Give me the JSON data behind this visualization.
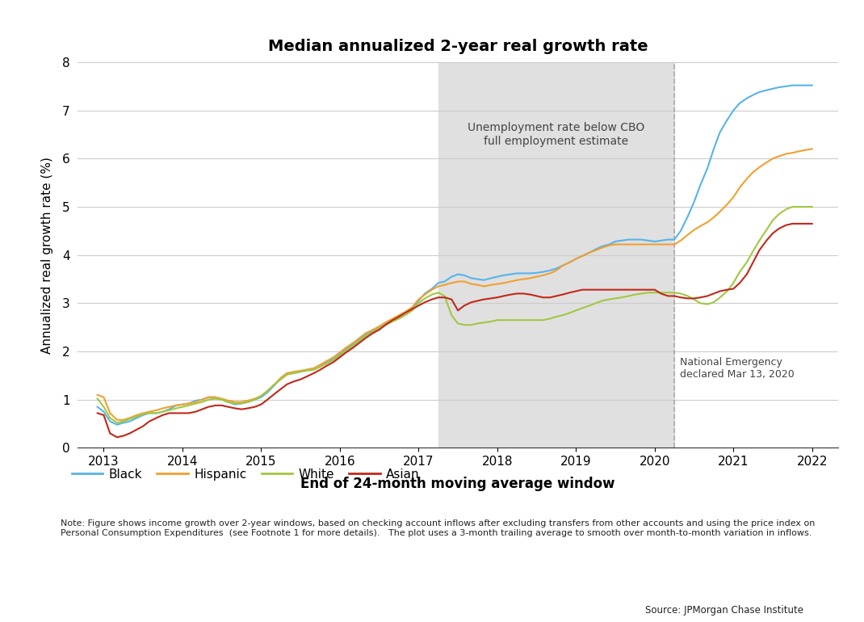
{
  "title": "Median annualized 2-year real growth rate",
  "xlabel": "End of 24-month moving average window",
  "ylabel": "Annualized real growth rate (%)",
  "ylim": [
    0,
    8
  ],
  "yticks": [
    0,
    1,
    2,
    3,
    4,
    5,
    6,
    7,
    8
  ],
  "xlim_start": 2012.67,
  "xlim_end": 2022.33,
  "xticks": [
    2013,
    2014,
    2015,
    2016,
    2017,
    2018,
    2019,
    2020,
    2021,
    2022
  ],
  "shade_start": 2017.25,
  "shade_end": 2020.25,
  "vline_x": 2020.25,
  "shade_color": "#e0e0e0",
  "shade_label": "Unemployment rate below CBO\nfull employment estimate",
  "vline_label": "National Emergency\ndeclared Mar 13, 2020",
  "colors": {
    "Black": "#56b4e9",
    "Hispanic": "#f0a030",
    "White": "#a0c840",
    "Asian": "#c0281a"
  },
  "note_text": "Note: Figure shows income growth over 2-year windows, based on checking account inflows after excluding transfers from other accounts and using the price index on\nPersonal Consumption Expenditures  (see Footnote 1 for more details).   The plot uses a 3-month trailing average to smooth over month-to-month variation in inflows.",
  "source_text": "Source: JPMorgan Chase Institute",
  "black_x": [
    2012.92,
    2013.0,
    2013.08,
    2013.17,
    2013.25,
    2013.33,
    2013.42,
    2013.5,
    2013.58,
    2013.67,
    2013.75,
    2013.83,
    2013.92,
    2014.0,
    2014.08,
    2014.17,
    2014.25,
    2014.33,
    2014.42,
    2014.5,
    2014.58,
    2014.67,
    2014.75,
    2014.83,
    2014.92,
    2015.0,
    2015.08,
    2015.17,
    2015.25,
    2015.33,
    2015.42,
    2015.5,
    2015.58,
    2015.67,
    2015.75,
    2015.83,
    2015.92,
    2016.0,
    2016.08,
    2016.17,
    2016.25,
    2016.33,
    2016.42,
    2016.5,
    2016.58,
    2016.67,
    2016.75,
    2016.83,
    2016.92,
    2017.0,
    2017.08,
    2017.17,
    2017.25,
    2017.33,
    2017.42,
    2017.5,
    2017.58,
    2017.67,
    2017.75,
    2017.83,
    2017.92,
    2018.0,
    2018.08,
    2018.17,
    2018.25,
    2018.33,
    2018.42,
    2018.5,
    2018.58,
    2018.67,
    2018.75,
    2018.83,
    2018.92,
    2019.0,
    2019.08,
    2019.17,
    2019.25,
    2019.33,
    2019.42,
    2019.5,
    2019.58,
    2019.67,
    2019.75,
    2019.83,
    2019.92,
    2020.0,
    2020.08,
    2020.17,
    2020.25,
    2020.33,
    2020.42,
    2020.5,
    2020.58,
    2020.67,
    2020.75,
    2020.83,
    2020.92,
    2021.0,
    2021.08,
    2021.17,
    2021.25,
    2021.33,
    2021.42,
    2021.5,
    2021.58,
    2021.67,
    2021.75,
    2021.83,
    2021.92,
    2022.0
  ],
  "black_y": [
    0.85,
    0.75,
    0.55,
    0.48,
    0.52,
    0.55,
    0.62,
    0.68,
    0.72,
    0.72,
    0.75,
    0.8,
    0.88,
    0.9,
    0.92,
    0.98,
    1.0,
    1.05,
    1.05,
    1.0,
    0.95,
    0.9,
    0.92,
    0.95,
    1.0,
    1.05,
    1.15,
    1.3,
    1.45,
    1.55,
    1.55,
    1.58,
    1.62,
    1.65,
    1.72,
    1.78,
    1.85,
    1.95,
    2.05,
    2.15,
    2.25,
    2.35,
    2.42,
    2.5,
    2.58,
    2.65,
    2.72,
    2.8,
    2.9,
    3.05,
    3.2,
    3.3,
    3.42,
    3.45,
    3.55,
    3.6,
    3.58,
    3.52,
    3.5,
    3.48,
    3.52,
    3.55,
    3.58,
    3.6,
    3.62,
    3.62,
    3.62,
    3.63,
    3.65,
    3.68,
    3.72,
    3.78,
    3.85,
    3.92,
    3.98,
    4.05,
    4.12,
    4.18,
    4.22,
    4.28,
    4.3,
    4.32,
    4.32,
    4.32,
    4.3,
    4.28,
    4.3,
    4.32,
    4.32,
    4.5,
    4.8,
    5.1,
    5.45,
    5.8,
    6.2,
    6.55,
    6.8,
    7.0,
    7.15,
    7.25,
    7.32,
    7.38,
    7.42,
    7.45,
    7.48,
    7.5,
    7.52,
    7.52,
    7.52,
    7.52
  ],
  "hispanic_x": [
    2012.92,
    2013.0,
    2013.08,
    2013.17,
    2013.25,
    2013.33,
    2013.42,
    2013.5,
    2013.58,
    2013.67,
    2013.75,
    2013.83,
    2013.92,
    2014.0,
    2014.08,
    2014.17,
    2014.25,
    2014.33,
    2014.42,
    2014.5,
    2014.58,
    2014.67,
    2014.75,
    2014.83,
    2014.92,
    2015.0,
    2015.08,
    2015.17,
    2015.25,
    2015.33,
    2015.42,
    2015.5,
    2015.58,
    2015.67,
    2015.75,
    2015.83,
    2015.92,
    2016.0,
    2016.08,
    2016.17,
    2016.25,
    2016.33,
    2016.42,
    2016.5,
    2016.58,
    2016.67,
    2016.75,
    2016.83,
    2016.92,
    2017.0,
    2017.08,
    2017.17,
    2017.25,
    2017.33,
    2017.42,
    2017.5,
    2017.58,
    2017.67,
    2017.75,
    2017.83,
    2017.92,
    2018.0,
    2018.08,
    2018.17,
    2018.25,
    2018.33,
    2018.42,
    2018.5,
    2018.58,
    2018.67,
    2018.75,
    2018.83,
    2018.92,
    2019.0,
    2019.08,
    2019.17,
    2019.25,
    2019.33,
    2019.42,
    2019.5,
    2019.58,
    2019.67,
    2019.75,
    2019.83,
    2019.92,
    2020.0,
    2020.08,
    2020.17,
    2020.25,
    2020.33,
    2020.42,
    2020.5,
    2020.58,
    2020.67,
    2020.75,
    2020.83,
    2020.92,
    2021.0,
    2021.08,
    2021.17,
    2021.25,
    2021.33,
    2021.42,
    2021.5,
    2021.58,
    2021.67,
    2021.75,
    2021.83,
    2021.92,
    2022.0
  ],
  "hispanic_y": [
    1.1,
    1.05,
    0.72,
    0.58,
    0.58,
    0.62,
    0.68,
    0.72,
    0.75,
    0.78,
    0.82,
    0.85,
    0.88,
    0.9,
    0.92,
    0.95,
    1.0,
    1.05,
    1.05,
    1.02,
    0.98,
    0.95,
    0.95,
    0.98,
    1.02,
    1.08,
    1.18,
    1.32,
    1.45,
    1.55,
    1.58,
    1.6,
    1.62,
    1.65,
    1.72,
    1.8,
    1.88,
    1.98,
    2.08,
    2.18,
    2.28,
    2.38,
    2.45,
    2.52,
    2.6,
    2.68,
    2.75,
    2.82,
    2.92,
    3.08,
    3.18,
    3.28,
    3.35,
    3.38,
    3.42,
    3.45,
    3.45,
    3.4,
    3.38,
    3.35,
    3.38,
    3.4,
    3.42,
    3.45,
    3.48,
    3.5,
    3.52,
    3.55,
    3.58,
    3.62,
    3.68,
    3.78,
    3.85,
    3.92,
    3.98,
    4.05,
    4.1,
    4.15,
    4.2,
    4.22,
    4.22,
    4.22,
    4.22,
    4.22,
    4.22,
    4.22,
    4.22,
    4.22,
    4.22,
    4.3,
    4.42,
    4.52,
    4.6,
    4.68,
    4.78,
    4.9,
    5.05,
    5.2,
    5.4,
    5.58,
    5.72,
    5.82,
    5.92,
    6.0,
    6.05,
    6.1,
    6.12,
    6.15,
    6.18,
    6.2
  ],
  "white_x": [
    2012.92,
    2013.0,
    2013.08,
    2013.17,
    2013.25,
    2013.33,
    2013.42,
    2013.5,
    2013.58,
    2013.67,
    2013.75,
    2013.83,
    2013.92,
    2014.0,
    2014.08,
    2014.17,
    2014.25,
    2014.33,
    2014.42,
    2014.5,
    2014.58,
    2014.67,
    2014.75,
    2014.83,
    2014.92,
    2015.0,
    2015.08,
    2015.17,
    2015.25,
    2015.33,
    2015.42,
    2015.5,
    2015.58,
    2015.67,
    2015.75,
    2015.83,
    2015.92,
    2016.0,
    2016.08,
    2016.17,
    2016.25,
    2016.33,
    2016.42,
    2016.5,
    2016.58,
    2016.67,
    2016.75,
    2016.83,
    2016.92,
    2017.0,
    2017.08,
    2017.17,
    2017.25,
    2017.33,
    2017.42,
    2017.5,
    2017.58,
    2017.67,
    2017.75,
    2017.83,
    2017.92,
    2018.0,
    2018.08,
    2018.17,
    2018.25,
    2018.33,
    2018.42,
    2018.5,
    2018.58,
    2018.67,
    2018.75,
    2018.83,
    2018.92,
    2019.0,
    2019.08,
    2019.17,
    2019.25,
    2019.33,
    2019.42,
    2019.5,
    2019.58,
    2019.67,
    2019.75,
    2019.83,
    2019.92,
    2020.0,
    2020.08,
    2020.17,
    2020.25,
    2020.33,
    2020.42,
    2020.5,
    2020.58,
    2020.67,
    2020.75,
    2020.83,
    2020.92,
    2021.0,
    2021.08,
    2021.17,
    2021.25,
    2021.33,
    2021.42,
    2021.5,
    2021.58,
    2021.67,
    2021.75,
    2021.83,
    2021.92,
    2022.0
  ],
  "white_y": [
    1.02,
    0.85,
    0.62,
    0.52,
    0.55,
    0.6,
    0.65,
    0.7,
    0.72,
    0.72,
    0.75,
    0.78,
    0.82,
    0.85,
    0.88,
    0.92,
    0.95,
    1.0,
    1.02,
    1.0,
    0.95,
    0.92,
    0.92,
    0.95,
    1.0,
    1.08,
    1.18,
    1.32,
    1.42,
    1.52,
    1.55,
    1.58,
    1.6,
    1.62,
    1.68,
    1.75,
    1.82,
    1.92,
    2.02,
    2.12,
    2.22,
    2.32,
    2.4,
    2.48,
    2.55,
    2.62,
    2.68,
    2.75,
    2.85,
    3.0,
    3.1,
    3.18,
    3.22,
    3.15,
    2.75,
    2.58,
    2.55,
    2.55,
    2.58,
    2.6,
    2.62,
    2.65,
    2.65,
    2.65,
    2.65,
    2.65,
    2.65,
    2.65,
    2.65,
    2.68,
    2.72,
    2.75,
    2.8,
    2.85,
    2.9,
    2.95,
    3.0,
    3.05,
    3.08,
    3.1,
    3.12,
    3.15,
    3.18,
    3.2,
    3.22,
    3.22,
    3.22,
    3.22,
    3.22,
    3.2,
    3.15,
    3.08,
    3.0,
    2.98,
    3.02,
    3.12,
    3.25,
    3.42,
    3.65,
    3.85,
    4.08,
    4.3,
    4.52,
    4.72,
    4.85,
    4.95,
    5.0,
    5.0,
    5.0,
    5.0
  ],
  "asian_x": [
    2012.92,
    2013.0,
    2013.08,
    2013.17,
    2013.25,
    2013.33,
    2013.42,
    2013.5,
    2013.58,
    2013.67,
    2013.75,
    2013.83,
    2013.92,
    2014.0,
    2014.08,
    2014.17,
    2014.25,
    2014.33,
    2014.42,
    2014.5,
    2014.58,
    2014.67,
    2014.75,
    2014.83,
    2014.92,
    2015.0,
    2015.08,
    2015.17,
    2015.25,
    2015.33,
    2015.42,
    2015.5,
    2015.58,
    2015.67,
    2015.75,
    2015.83,
    2015.92,
    2016.0,
    2016.08,
    2016.17,
    2016.25,
    2016.33,
    2016.42,
    2016.5,
    2016.58,
    2016.67,
    2016.75,
    2016.83,
    2016.92,
    2017.0,
    2017.08,
    2017.17,
    2017.25,
    2017.33,
    2017.42,
    2017.5,
    2017.58,
    2017.67,
    2017.75,
    2017.83,
    2017.92,
    2018.0,
    2018.08,
    2018.17,
    2018.25,
    2018.33,
    2018.42,
    2018.5,
    2018.58,
    2018.67,
    2018.75,
    2018.83,
    2018.92,
    2019.0,
    2019.08,
    2019.17,
    2019.25,
    2019.33,
    2019.42,
    2019.5,
    2019.58,
    2019.67,
    2019.75,
    2019.83,
    2019.92,
    2020.0,
    2020.08,
    2020.17,
    2020.25,
    2020.33,
    2020.42,
    2020.5,
    2020.58,
    2020.67,
    2020.75,
    2020.83,
    2020.92,
    2021.0,
    2021.08,
    2021.17,
    2021.25,
    2021.33,
    2021.42,
    2021.5,
    2021.58,
    2021.67,
    2021.75,
    2021.83,
    2021.92,
    2022.0
  ],
  "asian_y": [
    0.72,
    0.68,
    0.3,
    0.22,
    0.25,
    0.3,
    0.38,
    0.45,
    0.55,
    0.62,
    0.68,
    0.72,
    0.72,
    0.72,
    0.72,
    0.75,
    0.8,
    0.85,
    0.88,
    0.88,
    0.85,
    0.82,
    0.8,
    0.82,
    0.85,
    0.9,
    1.0,
    1.12,
    1.22,
    1.32,
    1.38,
    1.42,
    1.48,
    1.55,
    1.62,
    1.7,
    1.78,
    1.88,
    1.98,
    2.08,
    2.18,
    2.28,
    2.38,
    2.45,
    2.55,
    2.65,
    2.72,
    2.8,
    2.88,
    2.95,
    3.02,
    3.08,
    3.12,
    3.12,
    3.08,
    2.85,
    2.95,
    3.02,
    3.05,
    3.08,
    3.1,
    3.12,
    3.15,
    3.18,
    3.2,
    3.2,
    3.18,
    3.15,
    3.12,
    3.12,
    3.15,
    3.18,
    3.22,
    3.25,
    3.28,
    3.28,
    3.28,
    3.28,
    3.28,
    3.28,
    3.28,
    3.28,
    3.28,
    3.28,
    3.28,
    3.28,
    3.2,
    3.15,
    3.15,
    3.12,
    3.1,
    3.1,
    3.12,
    3.15,
    3.2,
    3.25,
    3.28,
    3.3,
    3.42,
    3.6,
    3.85,
    4.1,
    4.3,
    4.45,
    4.55,
    4.62,
    4.65,
    4.65,
    4.65,
    4.65
  ]
}
